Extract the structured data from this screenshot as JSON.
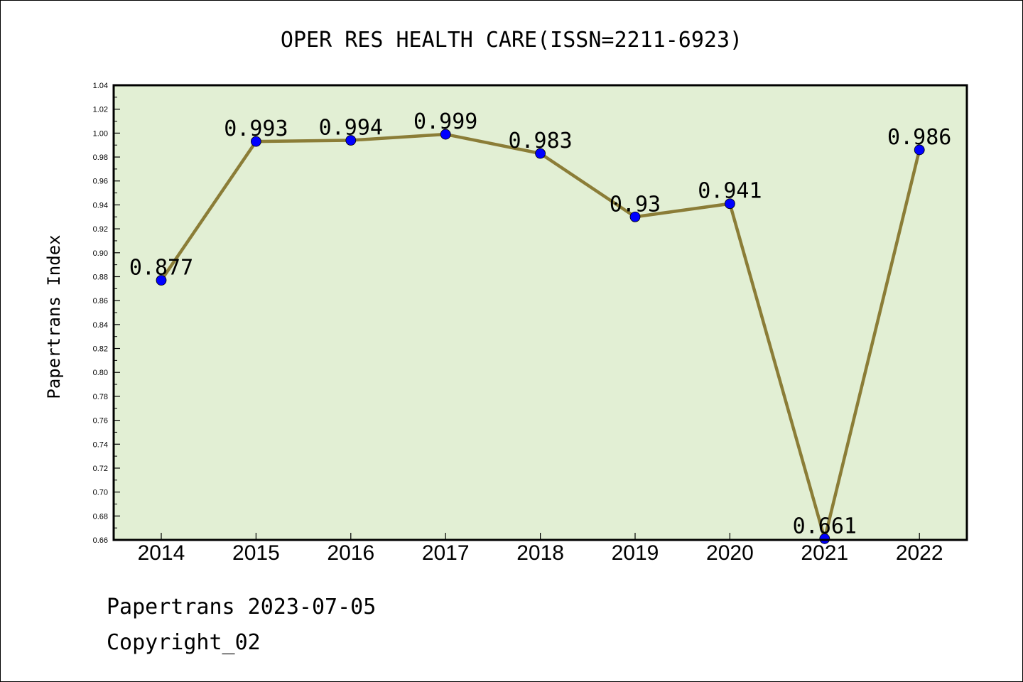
{
  "chart_data": {
    "type": "line",
    "title": "OPER RES HEALTH CARE(ISSN=2211-6923)",
    "xlabel": "",
    "ylabel": "Papertrans Index",
    "categories": [
      "2014",
      "2015",
      "2016",
      "2017",
      "2018",
      "2019",
      "2020",
      "2021",
      "2022"
    ],
    "values": [
      0.877,
      0.993,
      0.994,
      0.999,
      0.983,
      0.93,
      0.941,
      0.661,
      0.986
    ],
    "data_labels": [
      "0.877",
      "0.993",
      "0.994",
      "0.999",
      "0.983",
      "0.93",
      "0.941",
      "0.661",
      "0.986"
    ],
    "ylim": [
      0.66,
      1.04
    ],
    "y_ticks": [
      "0.66",
      "0.68",
      "0.70",
      "0.72",
      "0.74",
      "0.76",
      "0.78",
      "0.80",
      "0.82",
      "0.84",
      "0.86",
      "0.88",
      "0.90",
      "0.92",
      "0.94",
      "0.96",
      "0.98",
      "1.00",
      "1.02",
      "1.04"
    ],
    "grid": false,
    "legend": "none",
    "colors": {
      "plot_background": "#e2efd4",
      "line": "#8b7d37",
      "marker": "#0000ff"
    }
  },
  "footer": {
    "line1": "Papertrans 2023-07-05",
    "line2": "Copyright_02"
  }
}
